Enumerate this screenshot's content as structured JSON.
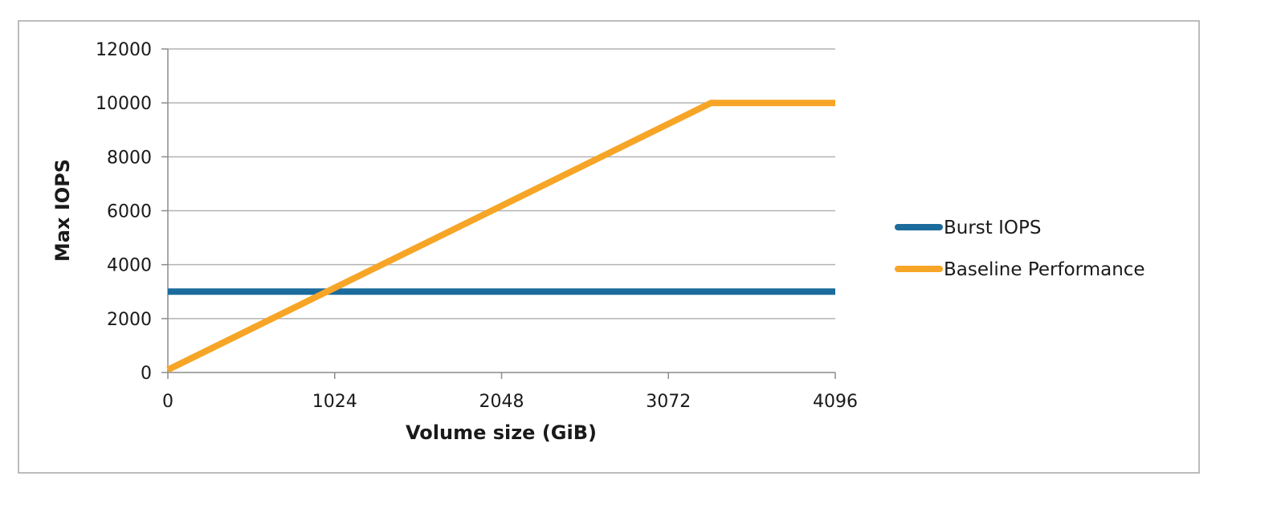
{
  "chart_data": {
    "type": "line",
    "title": "",
    "xlabel": "Volume size (GiB)",
    "ylabel": "Max IOPS",
    "xlim": [
      0,
      4096
    ],
    "ylim": [
      0,
      12000
    ],
    "x_ticks": [
      0,
      1024,
      2048,
      3072,
      4096
    ],
    "y_ticks": [
      0,
      2000,
      4000,
      6000,
      8000,
      10000,
      12000
    ],
    "grid": "horizontal",
    "legend_position": "right",
    "series": [
      {
        "name": "Burst IOPS",
        "color": "#1b6b9c",
        "points": [
          [
            0,
            3000
          ],
          [
            4096,
            3000
          ]
        ]
      },
      {
        "name": "Baseline Performance",
        "color": "#f7a527",
        "points": [
          [
            0,
            100
          ],
          [
            3334,
            10000
          ],
          [
            4096,
            10000
          ]
        ]
      }
    ]
  }
}
